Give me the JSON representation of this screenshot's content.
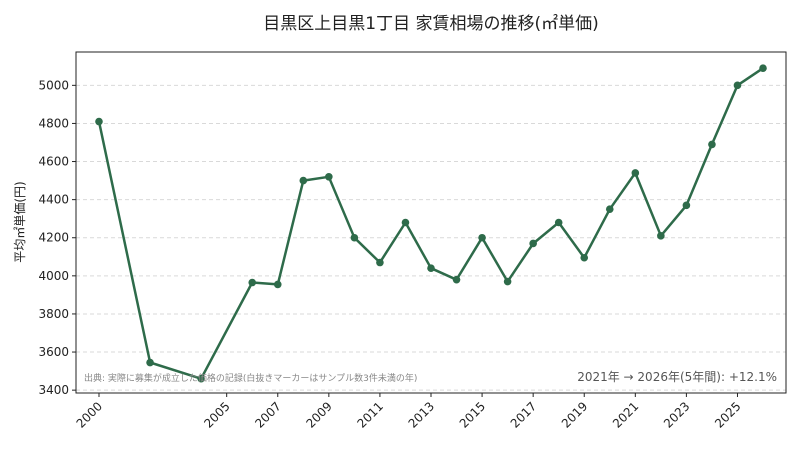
{
  "chart_data": {
    "type": "line",
    "title": "目黒区上目黒1丁目 家賃相場の推移(㎡単価)",
    "xlabel": "",
    "ylabel": "平均㎡単価(円)",
    "x": [
      2000,
      2002,
      2004,
      2006,
      2007,
      2008,
      2009,
      2010,
      2011,
      2012,
      2013,
      2014,
      2015,
      2016,
      2017,
      2018,
      2019,
      2020,
      2021,
      2022,
      2023,
      2024,
      2025,
      2026
    ],
    "series": [
      {
        "values": [
          4810,
          3545,
          3460,
          3965,
          3955,
          4500,
          4520,
          4200,
          4070,
          4280,
          4040,
          3980,
          4200,
          3970,
          4170,
          4280,
          4095,
          4350,
          4540,
          4210,
          4370,
          4690,
          5000,
          5090
        ]
      }
    ],
    "xticks": [
      "2000",
      "2005",
      "2007",
      "2009",
      "2011",
      "2013",
      "2015",
      "2017",
      "2019",
      "2021",
      "2023",
      "2025"
    ],
    "yticks": [
      3400,
      3600,
      3800,
      4000,
      4200,
      4400,
      4600,
      4800,
      5000
    ],
    "xlim": [
      1999.1,
      2026.9
    ],
    "ylim": [
      3385,
      5175
    ],
    "grid": "horizontal",
    "line_color": "#2e6b4a",
    "note": "出典: 実際に募集が成立した価格の記録(白抜きマーカーはサンプル数3件未満の年)",
    "summary": "2021年 → 2026年(5年間): +12.1%"
  }
}
